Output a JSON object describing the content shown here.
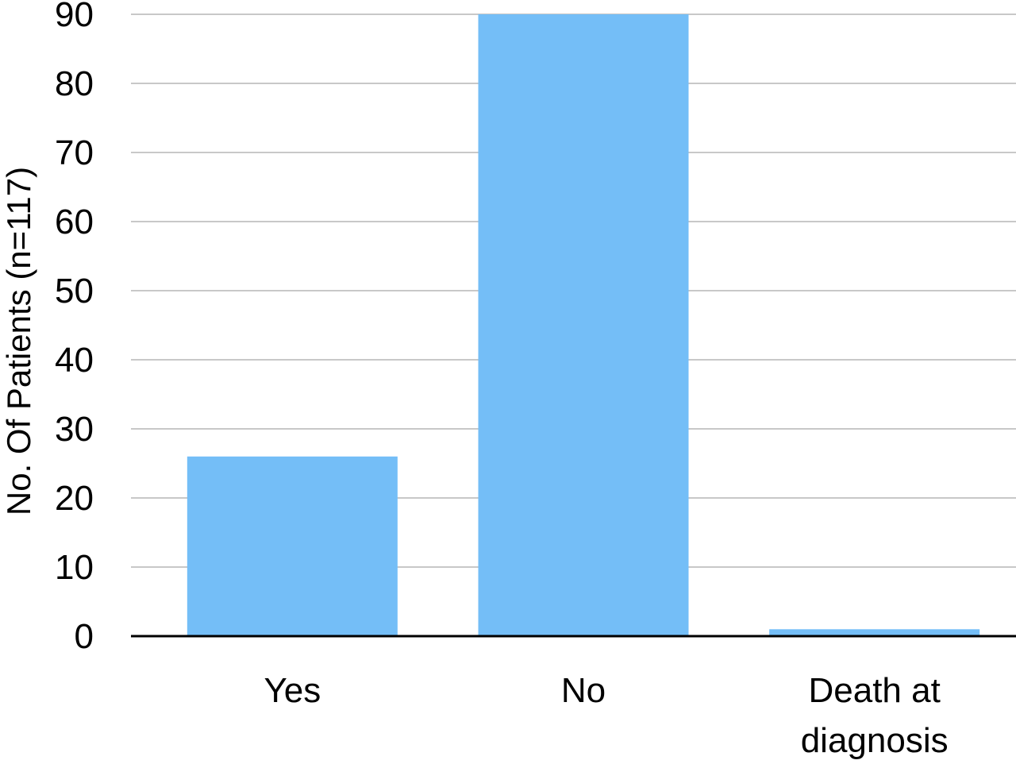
{
  "chart_data": {
    "type": "bar",
    "categories": [
      "Yes",
      "No",
      "Death at diagnosis"
    ],
    "category_lines": [
      [
        "Yes"
      ],
      [
        "No"
      ],
      [
        "Death at",
        "diagnosis"
      ]
    ],
    "values": [
      26,
      90,
      1
    ],
    "title": "",
    "xlabel": "",
    "ylabel": "No. Of Patients (n=117)",
    "ylim": [
      0,
      90
    ],
    "yticks": [
      0,
      10,
      20,
      30,
      40,
      50,
      60,
      70,
      80,
      90
    ],
    "grid": true,
    "legend": "none",
    "colors": {
      "bar": "#74bef7",
      "grid": "#c8c8c8",
      "baseline": "#000000"
    }
  }
}
